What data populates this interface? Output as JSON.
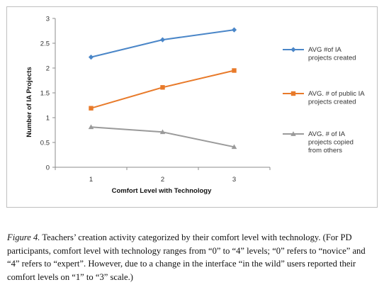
{
  "chart_data": {
    "type": "line",
    "x": [
      1,
      2,
      3
    ],
    "xlabel": "Comfort Level with Technology",
    "ylabel": "Number of IA Projects",
    "xlim": [
      0.5,
      3.5
    ],
    "ylim": [
      0,
      3
    ],
    "x_ticks": [
      "1",
      "2",
      "3"
    ],
    "y_ticks": [
      "0",
      "0.5",
      "1",
      "1.5",
      "2",
      "2.5",
      "3"
    ],
    "grid": false,
    "legend_position": "right",
    "series": [
      {
        "name": "AVG #of IA projects created",
        "legend_lines": [
          "AVG #of IA",
          "projects created"
        ],
        "values": [
          2.22,
          2.57,
          2.77
        ],
        "color": "#4a86c8",
        "marker": "diamond"
      },
      {
        "name": "AVG. # of public IA projects created",
        "legend_lines": [
          "AVG. # of public IA",
          "projects created"
        ],
        "values": [
          1.19,
          1.61,
          1.95
        ],
        "color": "#e87a2a",
        "marker": "square"
      },
      {
        "name": "AVG. # of IA projects copied from others",
        "legend_lines": [
          "AVG. # of IA",
          "projects copied",
          "from others"
        ],
        "values": [
          0.81,
          0.71,
          0.41
        ],
        "color": "#9a9a9a",
        "marker": "triangle"
      }
    ]
  },
  "caption": {
    "label": "Figure 4.",
    "text": " Teachers’ creation activity categorized by their comfort level with technology. (For PD participants, comfort level with technology ranges from “0” to “4” levels; “0” refers to “novice” and “4” refers to “expert”. However, due to a change in the interface “in the wild” users reported their comfort levels on “1” to “3” scale.)"
  }
}
